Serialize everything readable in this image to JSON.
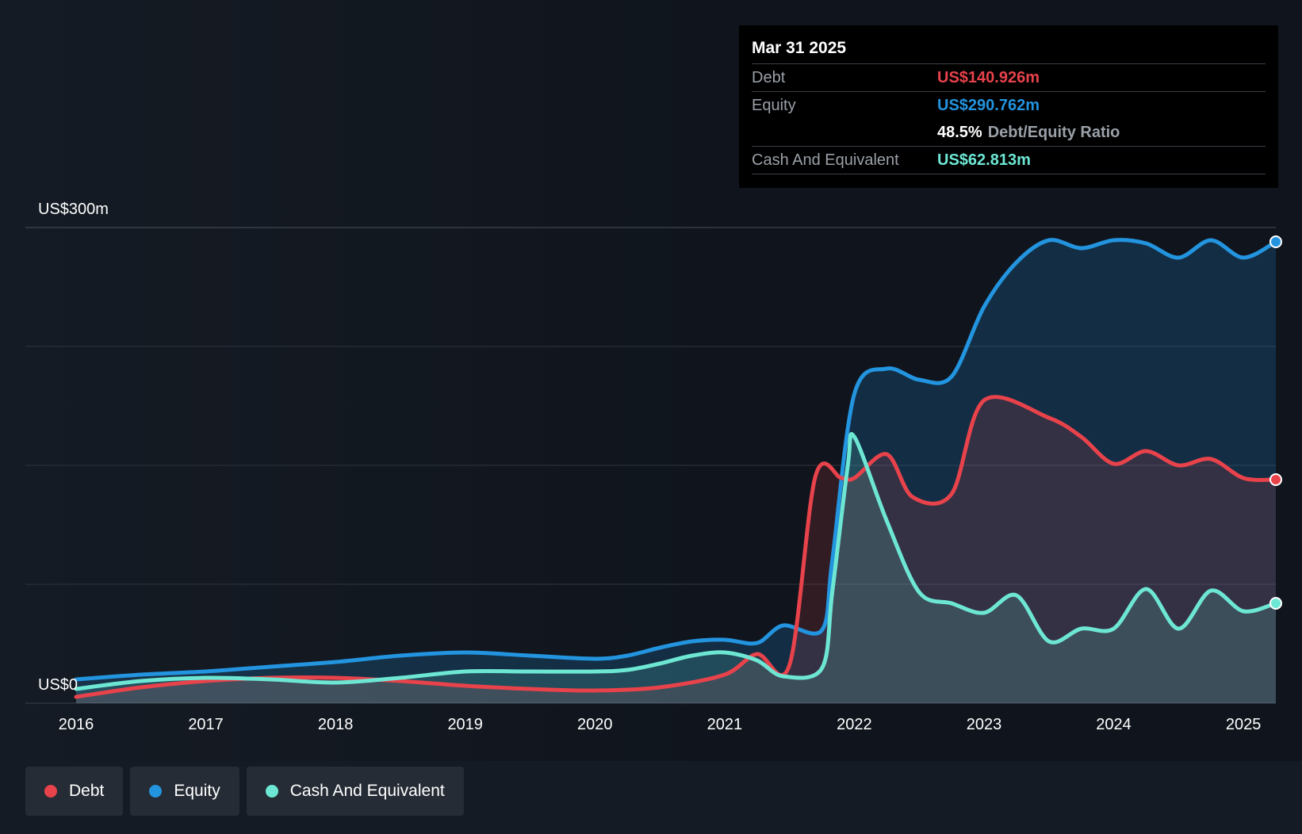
{
  "chart_data": {
    "type": "area",
    "y_max_label": "US$300m",
    "y_min_label": "US$0",
    "ylim": [
      0,
      300
    ],
    "x_ticks": [
      "2016",
      "2017",
      "2018",
      "2019",
      "2020",
      "2021",
      "2022",
      "2023",
      "2024",
      "2025"
    ],
    "grid": true,
    "colors": {
      "debt": "#e8424b",
      "equity": "#2394df",
      "cash": "#6de7d4"
    },
    "series": [
      {
        "name": "Debt",
        "key": "debt",
        "points": [
          [
            2016.0,
            4
          ],
          [
            2016.5,
            10
          ],
          [
            2017.0,
            14
          ],
          [
            2017.5,
            16
          ],
          [
            2018.0,
            16
          ],
          [
            2018.5,
            14
          ],
          [
            2019.0,
            11
          ],
          [
            2019.5,
            9
          ],
          [
            2020.0,
            8
          ],
          [
            2020.5,
            10
          ],
          [
            2021.0,
            18
          ],
          [
            2021.25,
            31
          ],
          [
            2021.5,
            24
          ],
          [
            2021.7,
            143
          ],
          [
            2021.9,
            142
          ],
          [
            2022.0,
            142
          ],
          [
            2022.25,
            157
          ],
          [
            2022.45,
            130
          ],
          [
            2022.75,
            132
          ],
          [
            2023.0,
            191
          ],
          [
            2023.5,
            180
          ],
          [
            2023.75,
            168
          ],
          [
            2024.0,
            151
          ],
          [
            2024.25,
            159
          ],
          [
            2024.5,
            150
          ],
          [
            2024.75,
            154
          ],
          [
            2025.0,
            142
          ],
          [
            2025.25,
            141
          ]
        ]
      },
      {
        "name": "Equity",
        "key": "equity",
        "points": [
          [
            2016.0,
            15
          ],
          [
            2016.5,
            18
          ],
          [
            2017.0,
            20
          ],
          [
            2017.5,
            23
          ],
          [
            2018.0,
            26
          ],
          [
            2018.5,
            30
          ],
          [
            2019.0,
            32
          ],
          [
            2019.5,
            30
          ],
          [
            2020.0,
            28
          ],
          [
            2020.25,
            30
          ],
          [
            2020.5,
            35
          ],
          [
            2020.75,
            39
          ],
          [
            2021.0,
            40
          ],
          [
            2021.25,
            38
          ],
          [
            2021.45,
            49
          ],
          [
            2021.75,
            46
          ],
          [
            2021.83,
            90
          ],
          [
            2022.0,
            195
          ],
          [
            2022.25,
            211
          ],
          [
            2022.5,
            204
          ],
          [
            2022.75,
            206
          ],
          [
            2023.0,
            250
          ],
          [
            2023.25,
            278
          ],
          [
            2023.5,
            292
          ],
          [
            2023.75,
            287
          ],
          [
            2024.0,
            292
          ],
          [
            2024.25,
            290
          ],
          [
            2024.5,
            281
          ],
          [
            2024.75,
            292
          ],
          [
            2025.0,
            281
          ],
          [
            2025.25,
            291
          ]
        ]
      },
      {
        "name": "Cash And Equivalent",
        "key": "cash",
        "points": [
          [
            2016.0,
            9
          ],
          [
            2016.5,
            14
          ],
          [
            2017.0,
            16
          ],
          [
            2017.5,
            15
          ],
          [
            2018.0,
            13
          ],
          [
            2018.5,
            16
          ],
          [
            2019.0,
            20
          ],
          [
            2019.5,
            20
          ],
          [
            2020.0,
            20
          ],
          [
            2020.25,
            21
          ],
          [
            2020.5,
            25
          ],
          [
            2020.75,
            30
          ],
          [
            2021.0,
            32
          ],
          [
            2021.25,
            27
          ],
          [
            2021.45,
            17
          ],
          [
            2021.75,
            22
          ],
          [
            2021.83,
            70
          ],
          [
            2021.95,
            150
          ],
          [
            2022.0,
            168
          ],
          [
            2022.25,
            115
          ],
          [
            2022.5,
            70
          ],
          [
            2022.75,
            63
          ],
          [
            2023.0,
            57
          ],
          [
            2023.25,
            68
          ],
          [
            2023.5,
            39
          ],
          [
            2023.75,
            47
          ],
          [
            2024.0,
            47
          ],
          [
            2024.25,
            72
          ],
          [
            2024.5,
            47
          ],
          [
            2024.75,
            71
          ],
          [
            2025.0,
            58
          ],
          [
            2025.25,
            63
          ]
        ]
      }
    ],
    "tooltip": {
      "date": "Mar 31 2025",
      "debt_label": "Debt",
      "debt_value": "US$140.926m",
      "equity_label": "Equity",
      "equity_value": "US$290.762m",
      "ratio_value": "48.5%",
      "ratio_label": "Debt/Equity Ratio",
      "cash_label": "Cash And Equivalent",
      "cash_value": "US$62.813m"
    }
  },
  "legend": {
    "items": [
      {
        "label": "Debt",
        "color": "#e8424b"
      },
      {
        "label": "Equity",
        "color": "#2394df"
      },
      {
        "label": "Cash And Equivalent",
        "color": "#6de7d4"
      }
    ]
  }
}
